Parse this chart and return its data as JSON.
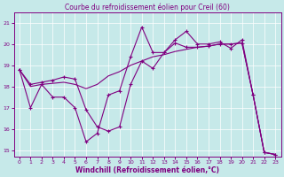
{
  "title": "Courbe du refroidissement éolien pour Creil (60)",
  "xlabel": "Windchill (Refroidissement éolien,°C)",
  "background_color": "#c6e9e9",
  "line_color": "#800080",
  "grid_color": "#ffffff",
  "xlim": [
    -0.5,
    23.5
  ],
  "ylim": [
    14.7,
    21.5
  ],
  "yticks": [
    15,
    16,
    17,
    18,
    19,
    20,
    21
  ],
  "xticks": [
    0,
    1,
    2,
    3,
    4,
    5,
    6,
    7,
    8,
    9,
    10,
    11,
    12,
    13,
    14,
    15,
    16,
    17,
    18,
    19,
    20,
    21,
    22,
    23
  ],
  "line1_x": [
    0,
    1,
    2,
    3,
    4,
    5,
    6,
    7,
    8,
    9,
    10,
    11,
    12,
    13,
    14,
    15,
    16,
    17,
    18,
    19,
    20,
    21,
    22,
    23
  ],
  "line1_y": [
    18.8,
    17.0,
    18.1,
    17.5,
    17.5,
    17.0,
    15.4,
    15.8,
    17.6,
    17.8,
    19.4,
    20.8,
    19.6,
    19.6,
    20.2,
    20.6,
    20.0,
    20.0,
    20.1,
    19.8,
    20.2,
    17.6,
    14.9,
    14.8
  ],
  "line2_x": [
    0,
    1,
    2,
    3,
    4,
    5,
    6,
    7,
    8,
    9,
    10,
    11,
    12,
    13,
    14,
    15,
    16,
    17,
    18,
    19,
    20,
    21,
    22,
    23
  ],
  "line2_y": [
    18.8,
    18.0,
    18.1,
    18.15,
    18.2,
    18.1,
    17.9,
    18.1,
    18.5,
    18.7,
    19.0,
    19.2,
    19.4,
    19.5,
    19.65,
    19.75,
    19.85,
    19.9,
    20.0,
    20.0,
    20.05,
    17.6,
    14.9,
    14.8
  ],
  "line3_x": [
    0,
    1,
    2,
    3,
    4,
    5,
    6,
    7,
    8,
    9,
    10,
    11,
    12,
    13,
    14,
    15,
    16,
    17,
    18,
    19,
    20,
    21,
    22,
    23
  ],
  "line3_y": [
    18.8,
    18.1,
    18.2,
    18.3,
    18.45,
    18.35,
    16.9,
    16.1,
    15.9,
    16.1,
    18.1,
    19.2,
    18.85,
    19.6,
    20.05,
    19.85,
    19.85,
    19.9,
    20.0,
    20.0,
    20.05,
    17.6,
    14.9,
    14.8
  ],
  "title_fontsize": 5.5,
  "xlabel_fontsize": 5.5,
  "tick_fontsize": 4.5
}
